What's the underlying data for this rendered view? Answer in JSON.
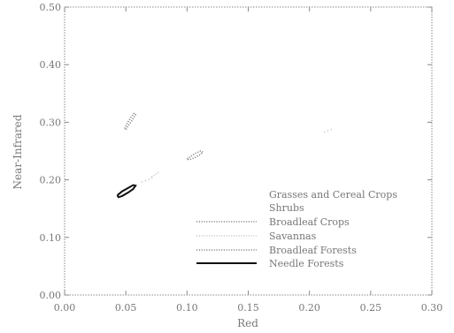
{
  "chart_data": {
    "type": "line",
    "title": "",
    "xlabel": "Red",
    "ylabel": "Near-Infrared",
    "xlim": [
      0.0,
      0.3
    ],
    "ylim": [
      0.0,
      0.5
    ],
    "x_ticks": [
      0.0,
      0.05,
      0.1,
      0.15,
      0.2,
      0.25,
      0.3
    ],
    "x_tick_labels": [
      "0.00",
      "0.05",
      "0.10",
      "0.15",
      "0.20",
      "0.25",
      "0.30"
    ],
    "y_ticks": [
      0.0,
      0.1,
      0.2,
      0.3,
      0.4,
      0.5
    ],
    "y_tick_labels": [
      "0.00",
      "0.10",
      "0.20",
      "0.30",
      "0.40",
      "0.50"
    ],
    "grid": false,
    "legend_position": "bottom-right",
    "series": [
      {
        "name": "Grasses and Cereal Crops",
        "color": "#bdbdbd",
        "style": "none",
        "x": [
          0.063,
          0.068,
          0.072
        ],
        "y": [
          0.196,
          0.2,
          0.204
        ]
      },
      {
        "name": "Shrubs",
        "color": "#bdbdbd",
        "style": "none",
        "x": [
          0.212,
          0.216,
          0.22
        ],
        "y": [
          0.283,
          0.286,
          0.289
        ]
      },
      {
        "name": "Broadleaf Crops",
        "color": "#8a8a8a",
        "style": "dotted",
        "x": [
          0.049,
          0.051,
          0.054,
          0.057,
          0.058,
          0.055,
          0.052,
          0.05,
          0.049
        ],
        "y": [
          0.289,
          0.298,
          0.308,
          0.316,
          0.313,
          0.303,
          0.294,
          0.287,
          0.289
        ]
      },
      {
        "name": "Savannas",
        "color": "#cccccc",
        "style": "dotted",
        "x": [
          0.071,
          0.074,
          0.077
        ],
        "y": [
          0.205,
          0.209,
          0.213
        ]
      },
      {
        "name": "Broadleaf Forests",
        "color": "#8a8a8a",
        "style": "dotted",
        "x": [
          0.1,
          0.103,
          0.107,
          0.111,
          0.113,
          0.11,
          0.106,
          0.102,
          0.1
        ],
        "y": [
          0.236,
          0.241,
          0.246,
          0.25,
          0.248,
          0.243,
          0.238,
          0.235,
          0.236
        ]
      },
      {
        "name": "Needle Forests",
        "color": "#111111",
        "style": "solid",
        "x": [
          0.043,
          0.047,
          0.052,
          0.056,
          0.058,
          0.056,
          0.052,
          0.047,
          0.044,
          0.043
        ],
        "y": [
          0.173,
          0.18,
          0.186,
          0.191,
          0.19,
          0.184,
          0.178,
          0.172,
          0.17,
          0.173
        ]
      }
    ]
  }
}
